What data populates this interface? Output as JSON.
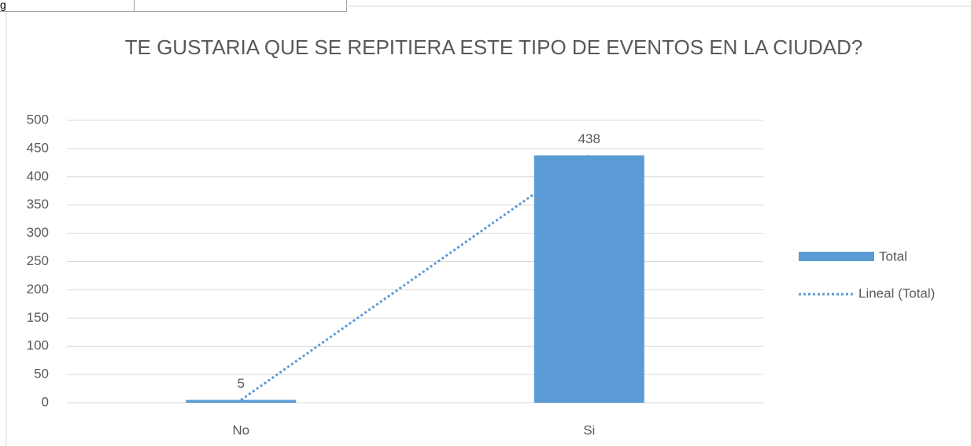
{
  "cell": {
    "text": "g"
  },
  "chart_data": {
    "type": "bar",
    "title": "TE GUSTARIA QUE SE REPITIERA ESTE TIPO DE EVENTOS EN LA CIUDAD?",
    "categories": [
      "No",
      "Si"
    ],
    "series": [
      {
        "name": "Total",
        "color": "#5b9bd5",
        "values": [
          5,
          438
        ]
      }
    ],
    "trendline": {
      "name": "Lineal (Total)",
      "color": "#5b9bd5",
      "style": "dotted"
    },
    "ylim": [
      0,
      500
    ],
    "yticks": [
      0,
      50,
      100,
      150,
      200,
      250,
      300,
      350,
      400,
      450,
      500
    ],
    "grid": true,
    "data_labels": true,
    "legend": "right"
  }
}
